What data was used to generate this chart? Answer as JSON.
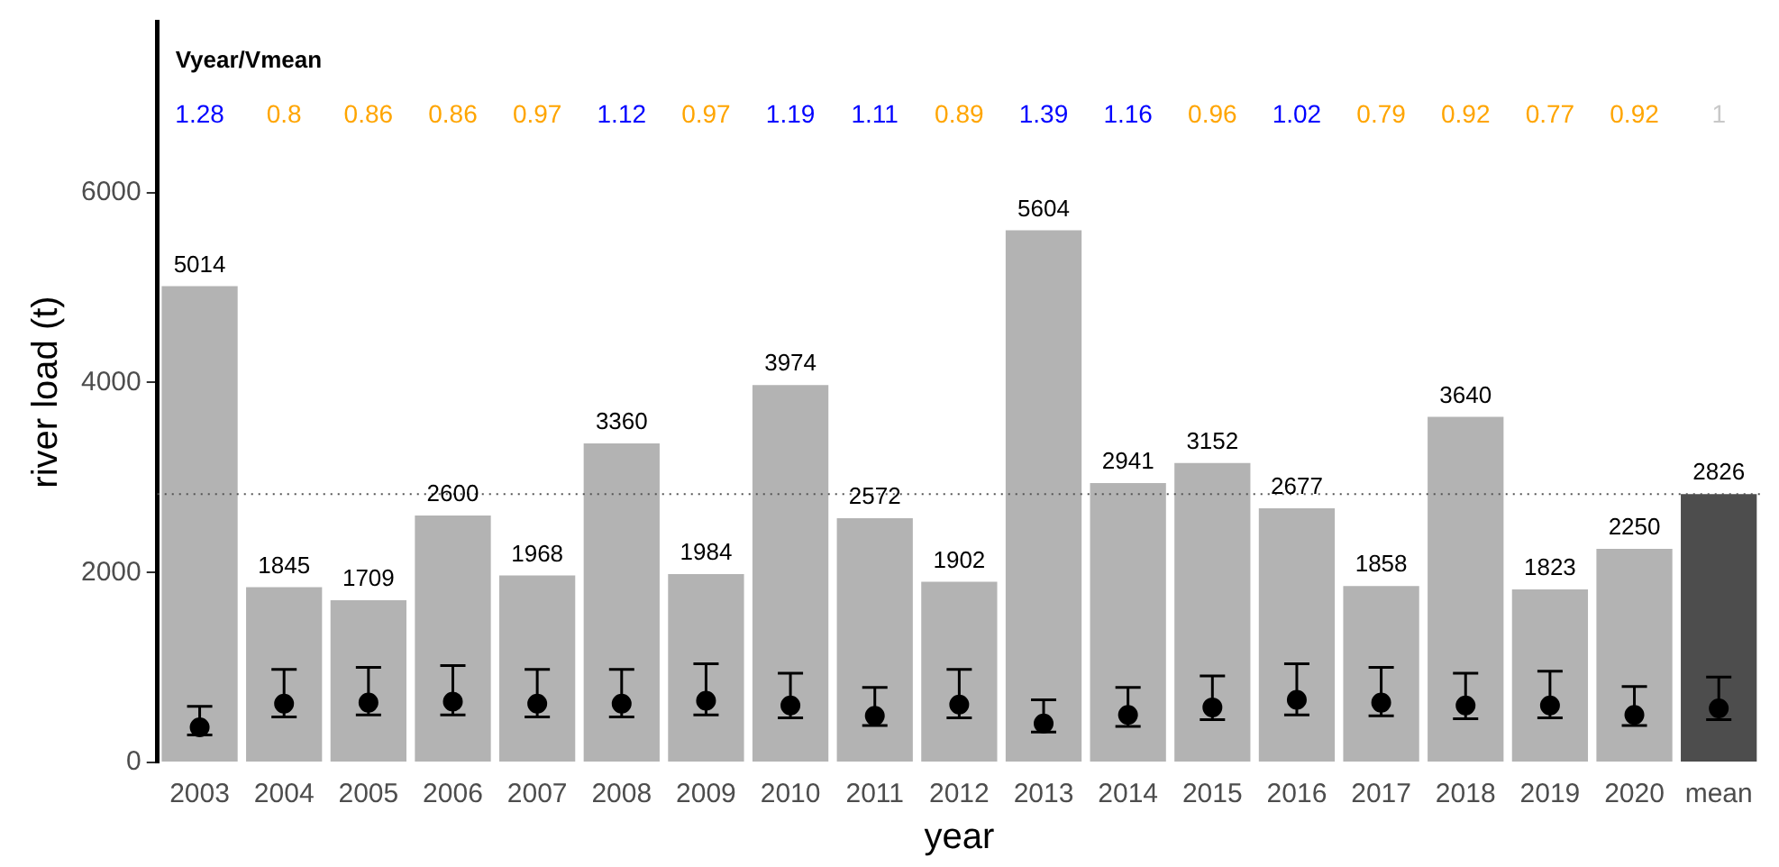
{
  "chart_data": {
    "type": "bar",
    "xlabel": "year",
    "ylabel": "river load (t)",
    "categories": [
      "2003",
      "2004",
      "2005",
      "2006",
      "2007",
      "2008",
      "2009",
      "2010",
      "2011",
      "2012",
      "2013",
      "2014",
      "2015",
      "2016",
      "2017",
      "2018",
      "2019",
      "2020",
      "mean"
    ],
    "series": [
      {
        "colors": [
          "#b3b3b3",
          "#b3b3b3",
          "#b3b3b3",
          "#b3b3b3",
          "#b3b3b3",
          "#b3b3b3",
          "#b3b3b3",
          "#b3b3b3",
          "#b3b3b3",
          "#b3b3b3",
          "#b3b3b3",
          "#b3b3b3",
          "#b3b3b3",
          "#b3b3b3",
          "#b3b3b3",
          "#b3b3b3",
          "#b3b3b3",
          "#b3b3b3",
          "#4d4d4d"
        ],
        "values": [
          5014,
          1845,
          1709,
          2600,
          1968,
          3360,
          1984,
          3974,
          2572,
          1902,
          5604,
          2941,
          3152,
          2677,
          1858,
          3640,
          1823,
          2250,
          2826
        ],
        "value_labels": [
          "5014",
          "1845",
          "1709",
          "2600",
          "1968",
          "3360",
          "1984",
          "3974",
          "2572",
          "1902",
          "5604",
          "2941",
          "3152",
          "2677",
          "1858",
          "3640",
          "1823",
          "2250",
          "2826"
        ]
      },
      {
        "type": "scatter",
        "color": "#000000",
        "marker": "circle",
        "values": [
          370,
          620,
          630,
          640,
          620,
          620,
          650,
          600,
          490,
          610,
          410,
          500,
          580,
          660,
          630,
          600,
          600,
          500,
          570
        ],
        "errors": [
          [
            290,
            590
          ],
          [
            480,
            980
          ],
          [
            500,
            1000
          ],
          [
            500,
            1020
          ],
          [
            480,
            980
          ],
          [
            480,
            980
          ],
          [
            500,
            1040
          ],
          [
            470,
            940
          ],
          [
            390,
            790
          ],
          [
            470,
            980
          ],
          [
            320,
            660
          ],
          [
            380,
            790
          ],
          [
            450,
            910
          ],
          [
            500,
            1040
          ],
          [
            490,
            1000
          ],
          [
            460,
            940
          ],
          [
            470,
            960
          ],
          [
            390,
            800
          ],
          [
            450,
            900
          ]
        ]
      }
    ],
    "ylim": [
      0,
      7800
    ],
    "yticks": [
      0,
      2000,
      4000,
      6000
    ],
    "ref_lines": [
      {
        "axis": "y",
        "value": 2826,
        "color": "#555555",
        "line_style": "dotted"
      }
    ],
    "annotations": [
      "Vyear/Vmean",
      "1.28",
      "0.8",
      "0.86",
      "0.86",
      "0.97",
      "1.12",
      "0.97",
      "1.19",
      "1.11",
      "0.89",
      "1.39",
      "1.16",
      "0.96",
      "1.02",
      "0.79",
      "0.92",
      "0.77",
      "0.92",
      "1"
    ],
    "grid": false,
    "legend": false
  }
}
